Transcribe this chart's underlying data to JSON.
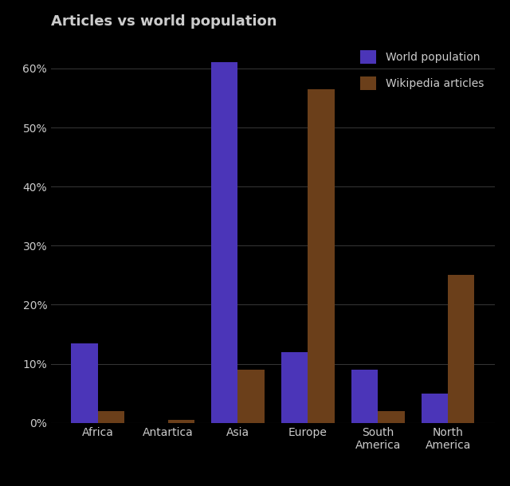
{
  "title": "Articles vs world population",
  "categories": [
    "Africa",
    "Antartica",
    "Asia",
    "Europe",
    "South\nAmerica",
    "North\nAmerica"
  ],
  "world_population": [
    13.5,
    0.0,
    61.0,
    12.0,
    9.0,
    5.0
  ],
  "wikipedia_articles": [
    2.0,
    0.5,
    9.0,
    56.5,
    2.0,
    25.0
  ],
  "bar_color_pop": "#4b35b8",
  "bar_color_wiki": "#6b3f1a",
  "background_color": "#000000",
  "text_color": "#cccccc",
  "grid_color": "#333333",
  "legend_labels": [
    "World population",
    "Wikipedia articles"
  ],
  "ylim": [
    0,
    65
  ],
  "bar_width": 0.38,
  "title_fontsize": 13,
  "tick_fontsize": 10,
  "legend_fontsize": 10
}
